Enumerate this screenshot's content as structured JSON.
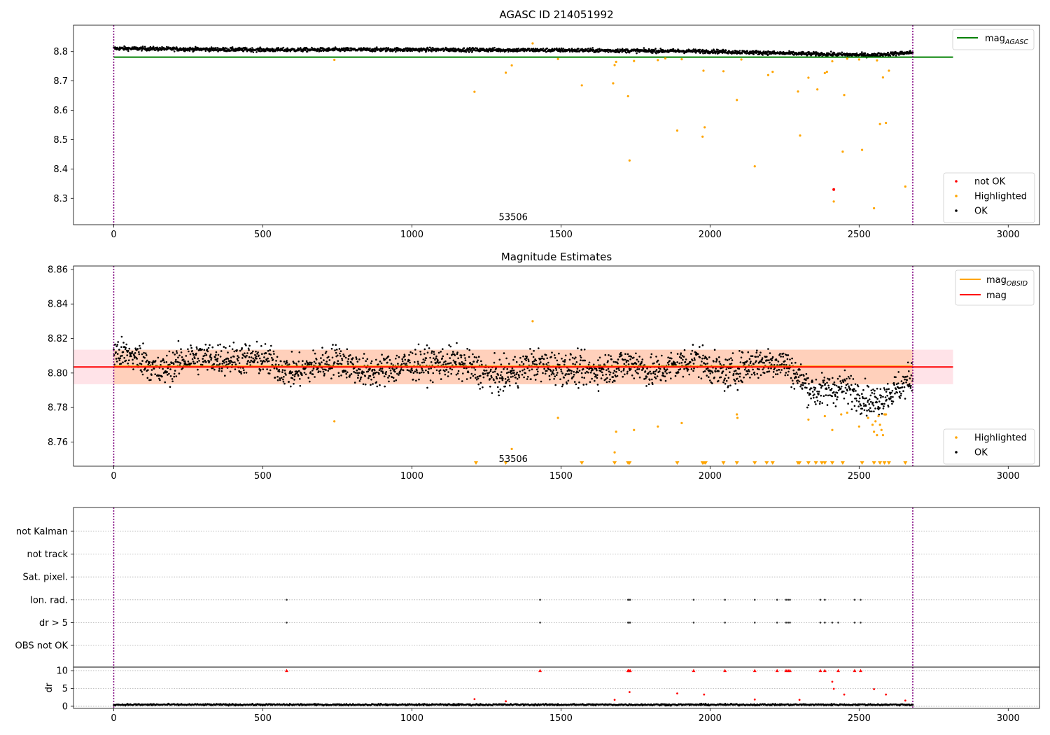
{
  "colors": {
    "ok": "#000000",
    "highlighted": "#ffa500",
    "not_ok": "#ff0000",
    "agasc_line": "#008000",
    "obsid_line": "#ffa500",
    "mag_line": "#ff0000",
    "mag_band": "#ffc0cb",
    "obsid_band": "#ffc8a8",
    "vline": "#800080",
    "grid": "#b0b0b0"
  },
  "chart_data": [
    {
      "type": "scatter",
      "title": "AGASC ID 214051992",
      "xlim": [
        -135,
        3105
      ],
      "ylim": [
        8.21,
        8.89
      ],
      "x_ticks": [
        0,
        500,
        1000,
        1500,
        2000,
        2500,
        3000
      ],
      "y_ticks": [
        8.3,
        8.4,
        8.5,
        8.6,
        8.7,
        8.8
      ],
      "grid": false,
      "legend_upper": "top-right",
      "legend_lower": "bottom-right",
      "legend_upper_entries": [
        {
          "base": "mag",
          "sub": "AGASC",
          "series": "agasc_line"
        }
      ],
      "legend_lower_entries": [
        {
          "label": "not OK",
          "series": "not_ok"
        },
        {
          "label": "Highlighted",
          "series": "highlighted"
        },
        {
          "label": "OK",
          "series": "ok"
        }
      ],
      "obsid_annotation": {
        "text": "53506",
        "x": 1340,
        "y": 8.235
      },
      "vlines": [
        0,
        2680
      ],
      "mag_agasc": {
        "value": 8.781,
        "x_range": [
          0,
          2815
        ]
      },
      "ok_series": {
        "x_range": [
          0,
          2680
        ],
        "baseline": [
          [
            0,
            8.811
          ],
          [
            500,
            8.806
          ],
          [
            1000,
            8.807
          ],
          [
            1500,
            8.805
          ],
          [
            2000,
            8.801
          ],
          [
            2300,
            8.793
          ],
          [
            2550,
            8.788
          ],
          [
            2600,
            8.792
          ],
          [
            2680,
            8.797
          ]
        ],
        "scatter": 0.006
      },
      "highlighted_points": [
        [
          740,
          8.772
        ],
        [
          1210,
          8.663
        ],
        [
          1315,
          8.728
        ],
        [
          1335,
          8.753
        ],
        [
          1405,
          8.828
        ],
        [
          1490,
          8.775
        ],
        [
          1570,
          8.685
        ],
        [
          1675,
          8.692
        ],
        [
          1680,
          8.754
        ],
        [
          1685,
          8.765
        ],
        [
          1725,
          8.648
        ],
        [
          1730,
          8.429
        ],
        [
          1745,
          8.768
        ],
        [
          1825,
          8.771
        ],
        [
          1850,
          8.777
        ],
        [
          1890,
          8.531
        ],
        [
          1905,
          8.774
        ],
        [
          1975,
          8.51
        ],
        [
          1978,
          8.735
        ],
        [
          1982,
          8.542
        ],
        [
          2045,
          8.733
        ],
        [
          2090,
          8.635
        ],
        [
          2105,
          8.773
        ],
        [
          2150,
          8.409
        ],
        [
          2195,
          8.72
        ],
        [
          2210,
          8.731
        ],
        [
          2295,
          8.664
        ],
        [
          2302,
          8.514
        ],
        [
          2330,
          8.711
        ],
        [
          2360,
          8.671
        ],
        [
          2385,
          8.727
        ],
        [
          2392,
          8.731
        ],
        [
          2410,
          8.767
        ],
        [
          2415,
          8.289
        ],
        [
          2445,
          8.459
        ],
        [
          2450,
          8.652
        ],
        [
          2460,
          8.776
        ],
        [
          2500,
          8.773
        ],
        [
          2510,
          8.465
        ],
        [
          2550,
          8.266
        ],
        [
          2560,
          8.77
        ],
        [
          2570,
          8.553
        ],
        [
          2580,
          8.712
        ],
        [
          2590,
          8.557
        ],
        [
          2600,
          8.735
        ],
        [
          2655,
          8.34
        ]
      ],
      "not_ok_points": [
        [
          2415,
          8.33
        ]
      ]
    },
    {
      "type": "scatter",
      "title": "Magnitude Estimates",
      "xlim": [
        -135,
        3105
      ],
      "ylim": [
        8.746,
        8.862
      ],
      "x_ticks": [
        0,
        500,
        1000,
        1500,
        2000,
        2500,
        3000
      ],
      "y_ticks": [
        8.76,
        8.78,
        8.8,
        8.82,
        8.84,
        8.86
      ],
      "grid": false,
      "legend_upper": "top-right",
      "legend_lower": "bottom-right",
      "legend_upper_entries": [
        {
          "base": "mag",
          "sub": "OBSID",
          "series": "obsid_line"
        },
        {
          "base": "mag",
          "sub": "",
          "series": "mag_line"
        }
      ],
      "legend_lower_entries": [
        {
          "label": "Highlighted",
          "series": "highlighted"
        },
        {
          "label": "OK",
          "series": "ok"
        }
      ],
      "obsid_annotation": {
        "text": "53506",
        "x": 1340,
        "y": 8.75
      },
      "vlines": [
        0,
        2680
      ],
      "mag": {
        "value": 8.8035,
        "x_range": [
          0,
          2815
        ],
        "band": [
          8.7935,
          8.8135
        ]
      },
      "mag_obsid": {
        "value": 8.8035,
        "x_range": [
          0,
          2680
        ],
        "band": [
          8.7935,
          8.8135
        ]
      },
      "ok_series": {
        "x_range": [
          0,
          2680
        ],
        "baseline": [
          [
            0,
            8.812
          ],
          [
            100,
            8.808
          ],
          [
            150,
            8.8
          ],
          [
            250,
            8.809
          ],
          [
            500,
            8.808
          ],
          [
            600,
            8.8
          ],
          [
            750,
            8.808
          ],
          [
            850,
            8.8
          ],
          [
            1000,
            8.805
          ],
          [
            1150,
            8.806
          ],
          [
            1300,
            8.797
          ],
          [
            1400,
            8.805
          ],
          [
            1600,
            8.801
          ],
          [
            1750,
            8.806
          ],
          [
            1800,
            8.8
          ],
          [
            1950,
            8.808
          ],
          [
            2050,
            8.799
          ],
          [
            2150,
            8.806
          ],
          [
            2250,
            8.806
          ],
          [
            2300,
            8.797
          ],
          [
            2350,
            8.789
          ],
          [
            2450,
            8.792
          ],
          [
            2550,
            8.783
          ],
          [
            2620,
            8.79
          ],
          [
            2680,
            8.797
          ]
        ],
        "scatter": 0.0085
      },
      "highlighted_points": [
        [
          740,
          8.772
        ],
        [
          1335,
          8.756
        ],
        [
          1405,
          8.83
        ],
        [
          1490,
          8.774
        ],
        [
          1680,
          8.754
        ],
        [
          1685,
          8.766
        ],
        [
          1745,
          8.767
        ],
        [
          1825,
          8.769
        ],
        [
          1905,
          8.771
        ],
        [
          2090,
          8.776
        ],
        [
          2092,
          8.774
        ],
        [
          2330,
          8.773
        ],
        [
          2385,
          8.775
        ],
        [
          2410,
          8.767
        ],
        [
          2440,
          8.776
        ],
        [
          2460,
          8.777
        ],
        [
          2500,
          8.769
        ],
        [
          2530,
          8.774
        ],
        [
          2545,
          8.77
        ],
        [
          2550,
          8.766
        ],
        [
          2555,
          8.772
        ],
        [
          2560,
          8.764
        ],
        [
          2565,
          8.775
        ],
        [
          2570,
          8.77
        ],
        [
          2575,
          8.767
        ],
        [
          2580,
          8.764
        ],
        [
          2585,
          8.776
        ],
        [
          2590,
          8.776
        ]
      ],
      "offscale_triangles": [
        1215,
        1315,
        1570,
        1680,
        1725,
        1730,
        1890,
        1975,
        1980,
        1985,
        2045,
        2090,
        2150,
        2190,
        2210,
        2295,
        2300,
        2330,
        2355,
        2375,
        2385,
        2410,
        2445,
        2510,
        2550,
        2570,
        2585,
        2600,
        2655
      ]
    },
    {
      "type": "scatter",
      "xlim": [
        -135,
        3105
      ],
      "flag_rows": [
        "not Kalman",
        "not track",
        "Sat. pixel.",
        "Ion. rad.",
        "dr > 5",
        "OBS not OK"
      ],
      "grid": true,
      "vlines": [
        0,
        2680
      ],
      "flag_points": {
        "Ion. rad.": [
          580,
          1430,
          1725,
          1728,
          1732,
          1945,
          2050,
          2150,
          2225,
          2255,
          2262,
          2268,
          2370,
          2385,
          2485,
          2505
        ],
        "dr > 5": [
          580,
          1430,
          1725,
          1728,
          1732,
          1945,
          2050,
          2150,
          2225,
          2255,
          2262,
          2268,
          2370,
          2385,
          2410,
          2430,
          2485,
          2505
        ]
      }
    },
    {
      "type": "scatter",
      "ylabel": "dr",
      "xlim": [
        -135,
        3105
      ],
      "ylim": [
        -0.6,
        11.0
      ],
      "x_ticks": [
        0,
        500,
        1000,
        1500,
        2000,
        2500,
        3000
      ],
      "y_ticks": [
        0,
        5,
        10
      ],
      "grid": true,
      "vlines": [
        0,
        2680
      ],
      "dr_ok_series": {
        "x_range": [
          0,
          2680
        ],
        "base": 0.45,
        "scatter": 0.22
      },
      "dr_highlighted_points": [
        [
          1210,
          2.0
        ],
        [
          1315,
          1.4
        ],
        [
          1680,
          1.8
        ],
        [
          1730,
          4.0
        ],
        [
          1890,
          3.6
        ],
        [
          1980,
          3.3
        ],
        [
          2150,
          1.9
        ],
        [
          2300,
          1.8
        ],
        [
          2410,
          6.9
        ],
        [
          2415,
          4.9
        ],
        [
          2450,
          3.3
        ],
        [
          2550,
          4.8
        ],
        [
          2590,
          3.3
        ],
        [
          2655,
          1.6
        ]
      ],
      "dr_clipped_points": [
        580,
        1430,
        1725,
        1728,
        1732,
        1945,
        2050,
        2150,
        2225,
        2255,
        2262,
        2268,
        2370,
        2385,
        2430,
        2485,
        2505
      ]
    }
  ]
}
